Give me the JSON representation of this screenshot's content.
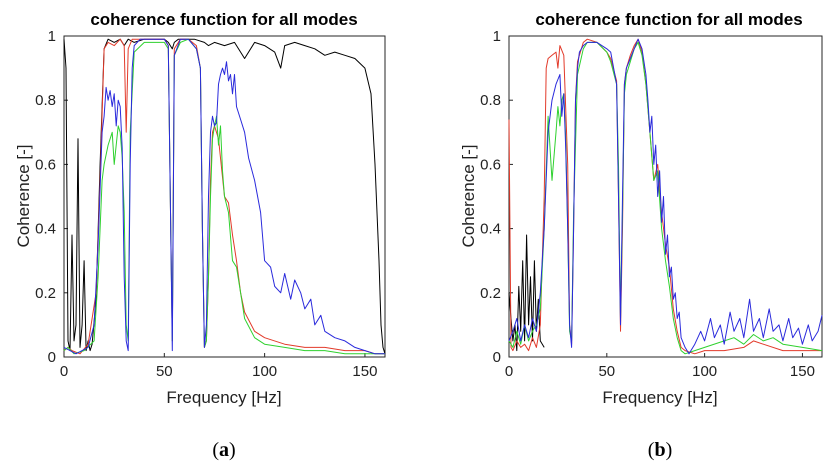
{
  "chart_data": [
    {
      "panel_label": "a",
      "type": "line",
      "title": "coherence function for all modes",
      "xlabel": "Frequency [Hz]",
      "ylabel": "Coherence [-]",
      "xlim": [
        0,
        160
      ],
      "ylim": [
        0,
        1
      ],
      "xticks": [
        0,
        50,
        100,
        150
      ],
      "yticks": [
        0,
        0.2,
        0.4,
        0.6,
        0.8,
        1
      ],
      "grid": false,
      "series": [
        {
          "color": "#000000",
          "x": [
            0,
            1,
            2,
            3,
            4,
            5,
            6,
            7,
            8,
            9,
            10,
            11,
            12,
            13,
            14,
            16,
            18,
            20,
            22,
            25,
            28,
            30,
            32,
            35,
            40,
            45,
            50,
            52,
            53,
            54,
            55,
            57,
            60,
            65,
            70,
            72,
            75,
            80,
            85,
            90,
            95,
            100,
            105,
            108,
            110,
            115,
            120,
            125,
            130,
            135,
            140,
            145,
            150,
            153,
            155,
            157,
            158,
            159,
            160
          ],
          "y": [
            0.99,
            0.9,
            0.05,
            0.02,
            0.38,
            0.05,
            0.1,
            0.68,
            0.03,
            0.1,
            0.3,
            0.02,
            0.05,
            0.02,
            0.04,
            0.18,
            0.6,
            0.96,
            0.99,
            0.98,
            0.99,
            0.97,
            0.99,
            0.98,
            0.99,
            0.99,
            0.99,
            0.98,
            0.97,
            0.96,
            0.98,
            0.99,
            0.99,
            0.99,
            0.98,
            0.97,
            0.98,
            0.97,
            0.98,
            0.93,
            0.98,
            0.97,
            0.95,
            0.9,
            0.97,
            0.98,
            0.97,
            0.96,
            0.94,
            0.95,
            0.94,
            0.93,
            0.9,
            0.82,
            0.6,
            0.3,
            0.1,
            0.03,
            0.01
          ]
        },
        {
          "color": "#e23a2a",
          "x": [
            0,
            2,
            4,
            8,
            12,
            16,
            18,
            20,
            22,
            25,
            28,
            30,
            31,
            32,
            34,
            40,
            45,
            50,
            52,
            53,
            54,
            55,
            58,
            62,
            66,
            68,
            69,
            70,
            71,
            72,
            73,
            74,
            75,
            77,
            78,
            80,
            82,
            84,
            86,
            88,
            90,
            95,
            100,
            110,
            120,
            130,
            140,
            150,
            155,
            160
          ],
          "y": [
            0.02,
            0.03,
            0.02,
            0.01,
            0.04,
            0.2,
            0.55,
            0.96,
            0.98,
            0.97,
            0.99,
            0.97,
            0.7,
            0.96,
            0.99,
            0.99,
            0.99,
            0.99,
            0.97,
            0.5,
            0.05,
            0.96,
            0.99,
            0.99,
            0.97,
            0.9,
            0.4,
            0.03,
            0.05,
            0.25,
            0.55,
            0.7,
            0.72,
            0.68,
            0.62,
            0.5,
            0.48,
            0.38,
            0.3,
            0.2,
            0.14,
            0.08,
            0.06,
            0.04,
            0.03,
            0.03,
            0.02,
            0.02,
            0.01,
            0.01
          ]
        },
        {
          "color": "#2fd12f",
          "x": [
            0,
            2,
            5,
            10,
            15,
            17,
            19,
            20,
            22,
            24,
            25,
            27,
            28,
            29,
            30,
            31,
            32,
            33,
            35,
            40,
            45,
            50,
            52,
            53,
            54,
            55,
            58,
            62,
            66,
            68,
            69,
            70,
            71,
            72,
            73,
            74,
            75,
            76,
            77,
            78,
            79,
            80,
            82,
            84,
            86,
            88,
            90,
            95,
            100,
            110,
            120,
            130,
            140,
            150,
            160
          ],
          "y": [
            0.02,
            0.03,
            0.01,
            0.02,
            0.05,
            0.25,
            0.55,
            0.6,
            0.66,
            0.7,
            0.6,
            0.72,
            0.7,
            0.62,
            0.45,
            0.1,
            0.05,
            0.7,
            0.95,
            0.98,
            0.98,
            0.98,
            0.96,
            0.5,
            0.05,
            0.94,
            0.98,
            0.99,
            0.96,
            0.9,
            0.4,
            0.03,
            0.05,
            0.25,
            0.5,
            0.68,
            0.72,
            0.75,
            0.66,
            0.72,
            0.58,
            0.5,
            0.45,
            0.3,
            0.28,
            0.2,
            0.12,
            0.06,
            0.04,
            0.03,
            0.02,
            0.02,
            0.01,
            0.01,
            0.01
          ]
        },
        {
          "color": "#2a2adc",
          "x": [
            0,
            3,
            6,
            9,
            12,
            15,
            17,
            19,
            20,
            21,
            22,
            23,
            24,
            25,
            26,
            27,
            28,
            29,
            30,
            31,
            32,
            33,
            34,
            35,
            38,
            40,
            45,
            50,
            52,
            53,
            54,
            55,
            58,
            62,
            66,
            68,
            69,
            70,
            71,
            72,
            73,
            74,
            75,
            76,
            77,
            78,
            79,
            80,
            81,
            82,
            83,
            84,
            85,
            86,
            88,
            90,
            92,
            95,
            98,
            100,
            103,
            105,
            108,
            110,
            113,
            115,
            118,
            120,
            123,
            125,
            128,
            130,
            135,
            140,
            145,
            150,
            155,
            160
          ],
          "y": [
            0.03,
            0.02,
            0.01,
            0.02,
            0.03,
            0.1,
            0.35,
            0.7,
            0.75,
            0.84,
            0.8,
            0.83,
            0.78,
            0.82,
            0.72,
            0.8,
            0.78,
            0.65,
            0.25,
            0.05,
            0.02,
            0.6,
            0.9,
            0.97,
            0.99,
            0.99,
            0.99,
            0.99,
            0.97,
            0.5,
            0.02,
            0.94,
            0.99,
            0.99,
            0.96,
            0.9,
            0.4,
            0.03,
            0.1,
            0.5,
            0.7,
            0.75,
            0.72,
            0.73,
            0.85,
            0.88,
            0.9,
            0.88,
            0.92,
            0.86,
            0.88,
            0.82,
            0.88,
            0.78,
            0.74,
            0.7,
            0.62,
            0.55,
            0.45,
            0.3,
            0.28,
            0.22,
            0.2,
            0.26,
            0.18,
            0.24,
            0.2,
            0.15,
            0.18,
            0.1,
            0.13,
            0.08,
            0.06,
            0.05,
            0.03,
            0.02,
            0.01,
            0.01
          ]
        }
      ]
    },
    {
      "panel_label": "b",
      "type": "line",
      "title": "coherence function for all modes",
      "xlabel": "Frequency [Hz]",
      "ylabel": "Coherence [-]",
      "xlim": [
        0,
        160
      ],
      "ylim": [
        0,
        1
      ],
      "xticks": [
        0,
        50,
        100,
        150
      ],
      "yticks": [
        0,
        0.2,
        0.4,
        0.6,
        0.8,
        1
      ],
      "grid": false,
      "series": [
        {
          "color": "#000000",
          "x": [
            0,
            1,
            2,
            3,
            4,
            5,
            6,
            7,
            8,
            9,
            10,
            11,
            12,
            13,
            14,
            15,
            16,
            18
          ],
          "y": [
            0.2,
            0.12,
            0.05,
            0.1,
            0.02,
            0.22,
            0.08,
            0.3,
            0.05,
            0.38,
            0.1,
            0.25,
            0.05,
            0.3,
            0.08,
            0.18,
            0.05,
            0.03
          ]
        },
        {
          "color": "#e23a2a",
          "x": [
            0,
            1,
            2,
            4,
            6,
            8,
            10,
            12,
            14,
            16,
            18,
            19,
            20,
            22,
            24,
            25,
            26,
            28,
            30,
            31,
            32,
            33,
            34,
            35,
            38,
            40,
            45,
            50,
            52,
            55,
            56,
            57,
            58,
            59,
            60,
            62,
            64,
            66,
            68,
            70,
            72,
            74,
            76,
            78,
            80,
            82,
            84,
            86,
            88,
            90,
            95,
            100,
            110,
            120,
            125,
            130,
            140,
            150,
            160
          ],
          "y": [
            0.74,
            0.03,
            0.02,
            0.05,
            0.03,
            0.04,
            0.02,
            0.06,
            0.03,
            0.1,
            0.5,
            0.9,
            0.93,
            0.94,
            0.95,
            0.9,
            0.97,
            0.94,
            0.6,
            0.1,
            0.04,
            0.4,
            0.8,
            0.92,
            0.98,
            0.99,
            0.98,
            0.95,
            0.93,
            0.86,
            0.5,
            0.08,
            0.4,
            0.85,
            0.9,
            0.94,
            0.97,
            0.99,
            0.95,
            0.85,
            0.7,
            0.55,
            0.6,
            0.45,
            0.35,
            0.28,
            0.15,
            0.08,
            0.03,
            0.02,
            0.01,
            0.02,
            0.02,
            0.03,
            0.05,
            0.04,
            0.02,
            0.02,
            0.02
          ]
        },
        {
          "color": "#2fd12f",
          "x": [
            0,
            2,
            4,
            6,
            8,
            10,
            12,
            14,
            16,
            18,
            20,
            22,
            24,
            25,
            26,
            27,
            28,
            29,
            30,
            31,
            32,
            33,
            35,
            38,
            40,
            45,
            50,
            52,
            55,
            56,
            57,
            58,
            59,
            60,
            62,
            64,
            66,
            68,
            70,
            72,
            74,
            76,
            78,
            80,
            82,
            84,
            86,
            88,
            90,
            95,
            100,
            110,
            115,
            120,
            125,
            130,
            135,
            140,
            150,
            160
          ],
          "y": [
            0.05,
            0.03,
            0.08,
            0.04,
            0.1,
            0.05,
            0.08,
            0.1,
            0.15,
            0.4,
            0.75,
            0.55,
            0.7,
            0.78,
            0.72,
            0.8,
            0.82,
            0.68,
            0.4,
            0.08,
            0.05,
            0.45,
            0.88,
            0.96,
            0.98,
            0.98,
            0.95,
            0.92,
            0.85,
            0.6,
            0.12,
            0.45,
            0.82,
            0.88,
            0.92,
            0.96,
            0.98,
            0.94,
            0.85,
            0.7,
            0.55,
            0.58,
            0.4,
            0.3,
            0.22,
            0.12,
            0.06,
            0.02,
            0.01,
            0.02,
            0.03,
            0.05,
            0.06,
            0.04,
            0.07,
            0.05,
            0.06,
            0.04,
            0.03,
            0.02
          ]
        },
        {
          "color": "#2a2adc",
          "x": [
            0,
            2,
            4,
            6,
            8,
            10,
            12,
            14,
            16,
            18,
            20,
            22,
            24,
            26,
            27,
            28,
            29,
            30,
            31,
            32,
            33,
            34,
            35,
            36,
            38,
            40,
            45,
            50,
            52,
            55,
            56,
            57,
            58,
            59,
            60,
            62,
            64,
            66,
            68,
            70,
            71,
            72,
            73,
            74,
            75,
            76,
            77,
            78,
            79,
            80,
            81,
            82,
            83,
            84,
            85,
            86,
            87,
            88,
            90,
            92,
            95,
            98,
            100,
            103,
            105,
            108,
            110,
            113,
            115,
            118,
            120,
            123,
            125,
            128,
            130,
            133,
            135,
            138,
            140,
            143,
            145,
            148,
            150,
            153,
            155,
            158,
            160
          ],
          "y": [
            0.05,
            0.08,
            0.12,
            0.05,
            0.1,
            0.06,
            0.12,
            0.08,
            0.2,
            0.4,
            0.7,
            0.8,
            0.85,
            0.88,
            0.75,
            0.82,
            0.65,
            0.4,
            0.1,
            0.03,
            0.4,
            0.8,
            0.9,
            0.95,
            0.97,
            0.98,
            0.98,
            0.96,
            0.95,
            0.85,
            0.5,
            0.1,
            0.5,
            0.85,
            0.9,
            0.93,
            0.96,
            0.99,
            0.96,
            0.88,
            0.8,
            0.7,
            0.75,
            0.6,
            0.66,
            0.5,
            0.58,
            0.42,
            0.5,
            0.32,
            0.38,
            0.25,
            0.28,
            0.18,
            0.2,
            0.12,
            0.14,
            0.06,
            0.03,
            0.01,
            0.04,
            0.08,
            0.05,
            0.12,
            0.06,
            0.1,
            0.04,
            0.14,
            0.08,
            0.12,
            0.06,
            0.18,
            0.08,
            0.12,
            0.06,
            0.15,
            0.08,
            0.1,
            0.05,
            0.12,
            0.06,
            0.09,
            0.04,
            0.1,
            0.05,
            0.08,
            0.13
          ]
        }
      ]
    }
  ]
}
